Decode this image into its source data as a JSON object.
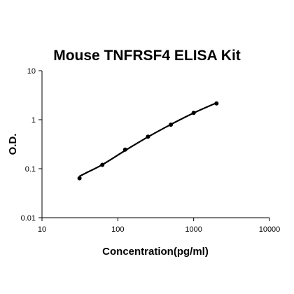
{
  "chart_data": {
    "type": "scatter",
    "title": "Mouse TNFRSF4 ELISA Kit",
    "xlabel": "Concentration(pg/ml)",
    "ylabel": "O.D.",
    "x_scale": "log",
    "y_scale": "log",
    "xlim": [
      10,
      10000
    ],
    "ylim": [
      0.01,
      10
    ],
    "x_ticks": [
      "10",
      "100",
      "1000",
      "10000"
    ],
    "y_ticks": [
      "0.01",
      "0.1",
      "1",
      "10"
    ],
    "grid": false,
    "legend": "none",
    "series": [
      {
        "points": [
          {
            "x": 31.25,
            "y": 0.064
          },
          {
            "x": 62.5,
            "y": 0.12
          },
          {
            "x": 125,
            "y": 0.245
          },
          {
            "x": 250,
            "y": 0.45
          },
          {
            "x": 500,
            "y": 0.79
          },
          {
            "x": 1000,
            "y": 1.38
          },
          {
            "x": 2000,
            "y": 2.15
          }
        ],
        "fit_curve": [
          {
            "x": 31.25,
            "y": 0.07
          },
          {
            "x": 40,
            "y": 0.085
          },
          {
            "x": 62.5,
            "y": 0.121
          },
          {
            "x": 125,
            "y": 0.235
          },
          {
            "x": 250,
            "y": 0.445
          },
          {
            "x": 500,
            "y": 0.8
          },
          {
            "x": 1000,
            "y": 1.37
          },
          {
            "x": 2000,
            "y": 2.2
          }
        ]
      }
    ]
  }
}
